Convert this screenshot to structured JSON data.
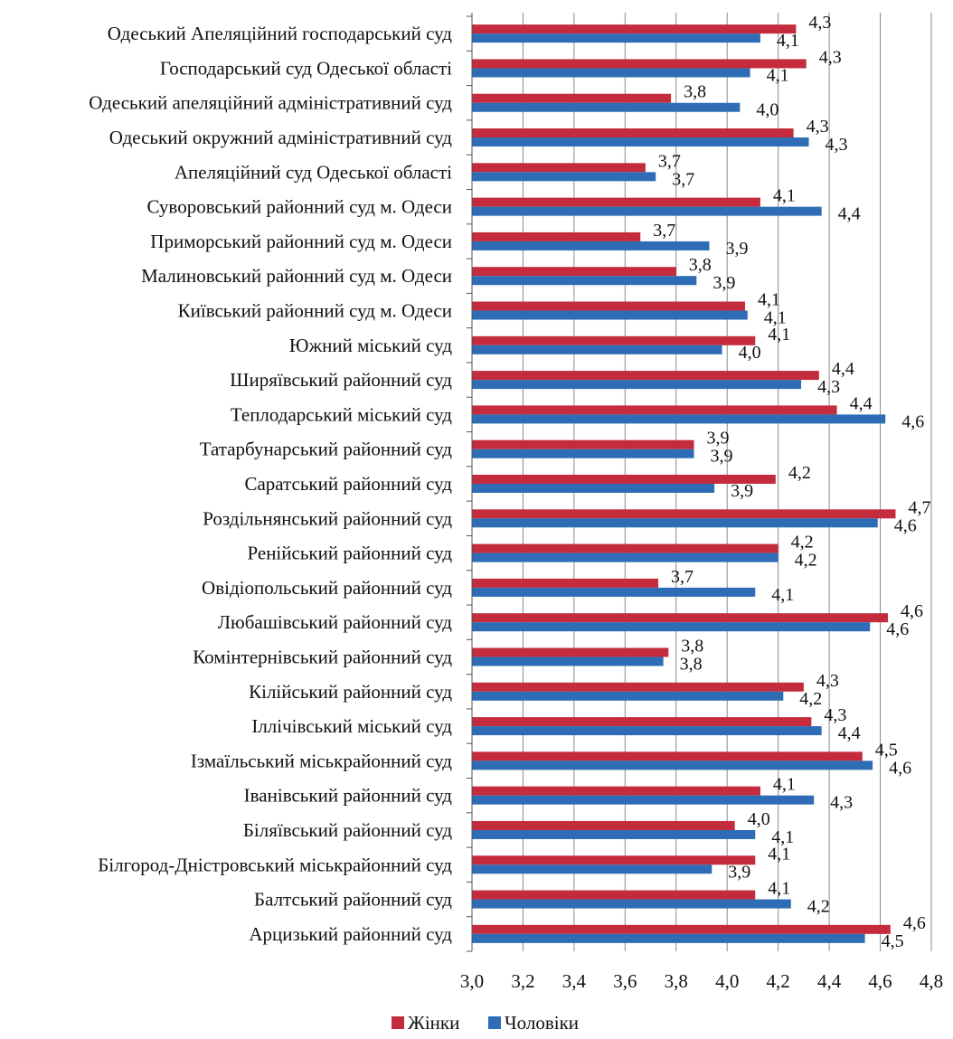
{
  "chart_data": {
    "type": "bar",
    "orientation": "horizontal",
    "categories": [
      "Одеський Апеляційний господарський суд",
      "Господарський суд Одеської області",
      "Одеський апеляційний адміністративний суд",
      "Одеський окружний адміністративний суд",
      "Апеляційний суд Одеської області",
      "Суворовський районний суд м. Одеси",
      "Приморський районний суд м. Одеси",
      "Малиновський районний суд м. Одеси",
      "Київський районний суд м. Одеси",
      "Южний міський суд",
      "Ширяївський районний суд",
      "Теплодарський міський суд",
      "Татарбунарський районний суд",
      "Саратський районний суд",
      "Роздільнянський районний суд",
      "Ренійський районний суд",
      "Овідіопольський районний суд",
      "Любашівський районний суд",
      "Комінтернівський районний суд",
      "Кілійський районний суд",
      "Іллічівський міський суд",
      "Ізмаїльський міськрайонний суд",
      "Іванівський районний суд",
      "Біляївський районний суд",
      "Білгород-Дністровський міськрайонний суд",
      "Балтський районний суд",
      "Арцизький районний суд"
    ],
    "series": [
      {
        "name": "Жінки",
        "color": "#c42b3c",
        "values": [
          4.27,
          4.31,
          3.78,
          4.26,
          3.68,
          4.13,
          3.66,
          3.8,
          4.07,
          4.11,
          4.36,
          4.43,
          3.87,
          4.19,
          4.66,
          4.2,
          3.73,
          4.63,
          3.77,
          4.3,
          4.33,
          4.53,
          4.13,
          4.03,
          4.11,
          4.11,
          4.64
        ],
        "labels": [
          "4,3",
          "4,3",
          "3,8",
          "4,3",
          "3,7",
          "4,1",
          "3,7",
          "3,8",
          "4,1",
          "4,1",
          "4,4",
          "4,4",
          "3,9",
          "4,2",
          "4,7",
          "4,2",
          "3,7",
          "4,6",
          "3,8",
          "4,3",
          "4,3",
          "4,5",
          "4,1",
          "4,0",
          "4,1",
          "4,1",
          "4,6"
        ]
      },
      {
        "name": "Чоловіки",
        "color": "#2e6db5",
        "values": [
          4.13,
          4.09,
          4.05,
          4.32,
          3.72,
          4.37,
          3.93,
          3.88,
          4.08,
          3.98,
          4.29,
          4.62,
          3.87,
          3.95,
          4.59,
          4.2,
          4.11,
          4.56,
          3.75,
          4.22,
          4.37,
          4.57,
          4.34,
          4.11,
          3.94,
          4.25,
          4.54
        ],
        "labels": [
          "4,1",
          "4,1",
          "4,0",
          "4,3",
          "3,7",
          "4,4",
          "3,9",
          "3,9",
          "4,1",
          "4,0",
          "4,3",
          "4,6",
          "3,9",
          "3,9",
          "4,6",
          "4,2",
          "4,1",
          "4,6",
          "3,8",
          "4,2",
          "4,4",
          "4,6",
          "4,3",
          "4,1",
          "3,9",
          "4,2",
          "4,5"
        ]
      }
    ],
    "xlim": [
      3.0,
      4.8
    ],
    "x_ticks": [
      3.0,
      3.2,
      3.4,
      3.6,
      3.8,
      4.0,
      4.2,
      4.4,
      4.6,
      4.8
    ],
    "x_tick_labels": [
      "3,0",
      "3,2",
      "3,4",
      "3,6",
      "3,8",
      "4,0",
      "4,2",
      "4,4",
      "4,6",
      "4,8"
    ],
    "grid": "vertical",
    "legend": {
      "position": "bottom",
      "entries": [
        "Жінки",
        "Чоловіки"
      ]
    },
    "title": "",
    "xlabel": "",
    "ylabel": ""
  }
}
